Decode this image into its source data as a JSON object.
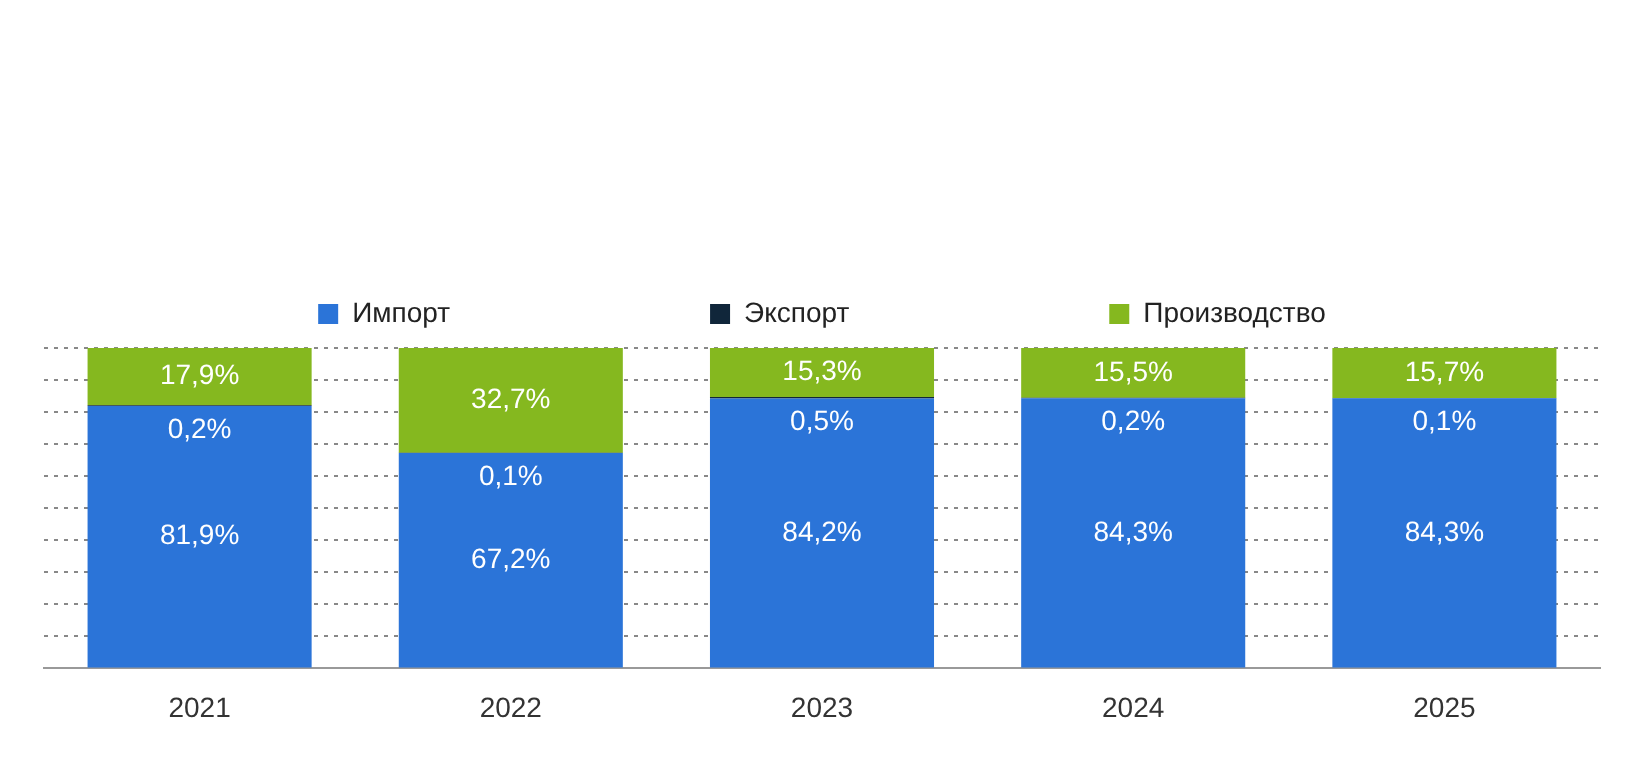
{
  "chart_data": {
    "type": "bar",
    "stacked": true,
    "categories": [
      "2021",
      "2022",
      "2023",
      "2024",
      "2025"
    ],
    "series": [
      {
        "name": "Импорт",
        "color": "#2b74d8",
        "values": [
          81.9,
          67.2,
          84.2,
          84.3,
          84.3
        ],
        "value_labels": [
          "81,9%",
          "67,2%",
          "84,2%",
          "84,3%",
          "84,3%"
        ]
      },
      {
        "name": "Экспорт",
        "color": "#10263a",
        "values": [
          0.2,
          0.1,
          0.5,
          0.2,
          0.1
        ],
        "value_labels": [
          "0,2%",
          "0,1%",
          "0,5%",
          "0,2%",
          "0,1%"
        ]
      },
      {
        "name": "Производство",
        "color": "#85b81f",
        "values": [
          17.9,
          32.7,
          15.3,
          15.5,
          15.7
        ],
        "value_labels": [
          "17,9%",
          "32,7%",
          "15,3%",
          "15,5%",
          "15,7%"
        ]
      }
    ],
    "ylim": [
      0,
      100
    ],
    "yticks": [
      {
        "value": 0,
        "label": null
      },
      {
        "value": 10,
        "label": null
      },
      {
        "value": 20,
        "label": null
      },
      {
        "value": 30,
        "label": null
      },
      {
        "value": 40,
        "label": null
      },
      {
        "value": 50,
        "label": null
      },
      {
        "value": 60,
        "label": null
      },
      {
        "value": 70,
        "label": null
      },
      {
        "value": 80,
        "label": null
      },
      {
        "value": 90,
        "label": null
      },
      {
        "value": 100,
        "label": null
      }
    ],
    "tick_labels": "x",
    "grid": "y",
    "legend": "top",
    "marker": "square"
  }
}
